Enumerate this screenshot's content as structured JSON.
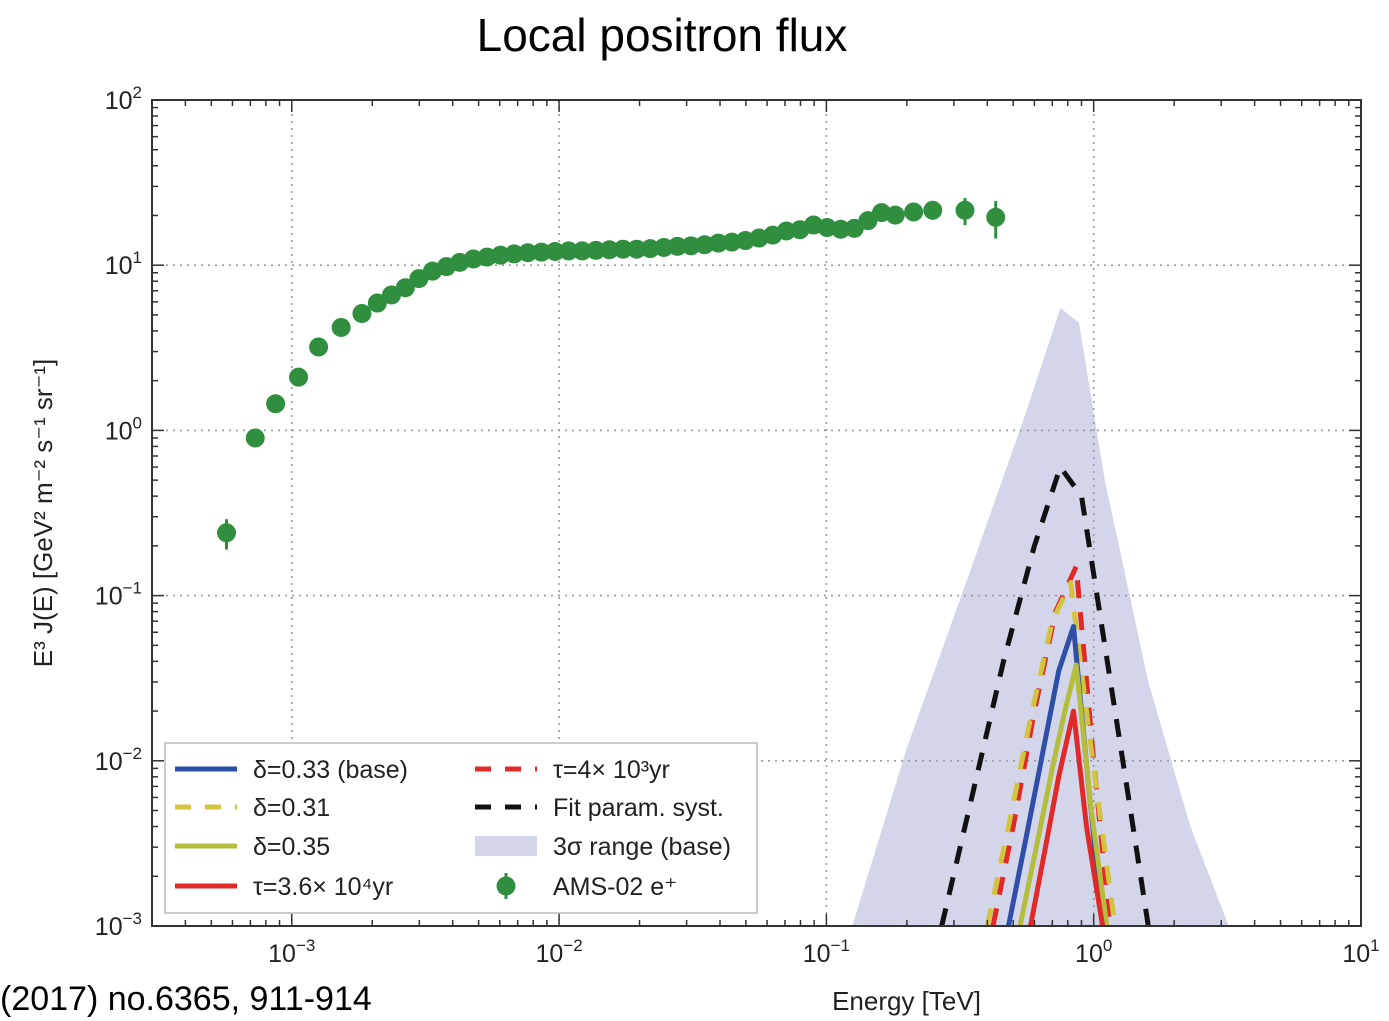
{
  "page": {
    "title": "Local positron flux",
    "citation": "(2017) no.6365, 911-914"
  },
  "chart_data": {
    "type": "line",
    "title": "Local positron flux",
    "xlabel": "Energy [TeV]",
    "ylabel": "E³ J(E) [GeV² m⁻² s⁻¹ sr⁻¹]",
    "x_scale": "log",
    "y_scale": "log",
    "xlim": [
      0.0003,
      10
    ],
    "ylim": [
      0.001,
      100
    ],
    "grid": true,
    "legend_position": "lower-left",
    "x_ticks": [
      {
        "value": 0.001,
        "base": "10",
        "exp": "−3"
      },
      {
        "value": 0.01,
        "base": "10",
        "exp": "−2"
      },
      {
        "value": 0.1,
        "base": "10",
        "exp": "−1"
      },
      {
        "value": 1,
        "base": "10",
        "exp": "0"
      },
      {
        "value": 10,
        "base": "10",
        "exp": "1"
      }
    ],
    "y_ticks": [
      {
        "value": 0.001,
        "base": "10",
        "exp": "−3"
      },
      {
        "value": 0.01,
        "base": "10",
        "exp": "−2"
      },
      {
        "value": 0.1,
        "base": "10",
        "exp": "−1"
      },
      {
        "value": 1,
        "base": "10",
        "exp": "0"
      },
      {
        "value": 10,
        "base": "10",
        "exp": "1"
      },
      {
        "value": 100,
        "base": "10",
        "exp": "2"
      }
    ],
    "band": {
      "name": "3σ range (base)",
      "color": "#d3d5eb",
      "x": [
        0.125,
        0.2,
        0.35,
        0.55,
        0.75,
        0.88,
        1.1,
        1.6,
        2.3,
        3.2
      ],
      "y": [
        0.001,
        0.012,
        0.15,
        1.2,
        5.5,
        4.5,
        0.5,
        0.03,
        0.004,
        0.001
      ]
    },
    "series": [
      {
        "name": "δ=0.33 (base)",
        "color": "#2d4fa8",
        "style": "solid",
        "x": [
          0.48,
          0.56,
          0.65,
          0.74,
          0.84,
          0.95,
          1.08
        ],
        "y": [
          0.001,
          0.0035,
          0.012,
          0.035,
          0.065,
          0.008,
          0.001
        ]
      },
      {
        "name": "δ=0.31",
        "color": "#d2c43e",
        "style": "dashed",
        "x": [
          0.4,
          0.48,
          0.58,
          0.7,
          0.82,
          0.96,
          1.2
        ],
        "y": [
          0.001,
          0.004,
          0.018,
          0.07,
          0.12,
          0.015,
          0.001
        ]
      },
      {
        "name": "δ=0.35",
        "color": "#b5bd3c",
        "style": "solid",
        "x": [
          0.53,
          0.61,
          0.7,
          0.78,
          0.86,
          0.98,
          1.12
        ],
        "y": [
          0.001,
          0.003,
          0.009,
          0.02,
          0.038,
          0.005,
          0.001
        ]
      },
      {
        "name": "τ=3.6× 10⁴yr",
        "color": "#e02a2a",
        "style": "solid",
        "x": [
          0.58,
          0.66,
          0.74,
          0.84,
          0.94,
          1.08
        ],
        "y": [
          0.001,
          0.003,
          0.008,
          0.02,
          0.004,
          0.001
        ]
      },
      {
        "name": "τ=4× 10³yr",
        "color": "#e02a2a",
        "style": "dashed",
        "x": [
          0.42,
          0.5,
          0.6,
          0.72,
          0.86,
          1.0,
          1.15
        ],
        "y": [
          0.001,
          0.004,
          0.02,
          0.08,
          0.15,
          0.01,
          0.001
        ]
      },
      {
        "name": "Fit param. syst.",
        "color": "#111111",
        "style": "dashed",
        "x": [
          0.27,
          0.35,
          0.46,
          0.6,
          0.75,
          0.9,
          1.1,
          1.35,
          1.6
        ],
        "y": [
          0.001,
          0.006,
          0.04,
          0.2,
          0.6,
          0.4,
          0.05,
          0.006,
          0.001
        ]
      }
    ],
    "points": {
      "name": "AMS-02 e⁺",
      "color": "#2f8f3f",
      "x": [
        0.00057,
        0.00073,
        0.00087,
        0.00106,
        0.00126,
        0.00153,
        0.00183,
        0.00209,
        0.00236,
        0.00266,
        0.00299,
        0.00336,
        0.00379,
        0.00425,
        0.00478,
        0.00538,
        0.00604,
        0.00679,
        0.00764,
        0.00859,
        0.00966,
        0.01086,
        0.01221,
        0.01373,
        0.01543,
        0.01735,
        0.01951,
        0.02193,
        0.02466,
        0.02772,
        0.03117,
        0.03504,
        0.0394,
        0.0443,
        0.0498,
        0.056,
        0.063,
        0.0708,
        0.0796,
        0.0895,
        0.1006,
        0.1131,
        0.1272,
        0.143,
        0.1608,
        0.181,
        0.212,
        0.25,
        0.33,
        0.43
      ],
      "y": [
        0.24,
        0.9,
        1.45,
        2.1,
        3.2,
        4.2,
        5.1,
        5.9,
        6.6,
        7.3,
        8.3,
        9.2,
        9.8,
        10.4,
        10.9,
        11.2,
        11.5,
        11.7,
        11.9,
        12.0,
        12.1,
        12.2,
        12.2,
        12.3,
        12.4,
        12.5,
        12.5,
        12.6,
        12.8,
        13.0,
        13.1,
        13.3,
        13.6,
        13.8,
        14.1,
        14.6,
        15.2,
        16.1,
        16.4,
        17.5,
        16.9,
        16.5,
        16.7,
        18.6,
        20.8,
        20.1,
        21.0,
        21.5,
        21.5,
        19.5
      ],
      "err_y": [
        0.05,
        0.06,
        0.08,
        0.1,
        0.15,
        0.2,
        0.22,
        0.25,
        0.28,
        0.3,
        0.3,
        0.32,
        0.33,
        0.34,
        0.35,
        0.36,
        0.37,
        0.38,
        0.38,
        0.39,
        0.4,
        0.4,
        0.41,
        0.42,
        0.43,
        0.44,
        0.45,
        0.46,
        0.48,
        0.5,
        0.52,
        0.55,
        0.58,
        0.62,
        0.66,
        0.7,
        0.75,
        0.8,
        0.9,
        1.0,
        1.1,
        1.2,
        1.3,
        1.5,
        1.7,
        2.0,
        2.3,
        2.7,
        4.0,
        5.0
      ]
    },
    "legend": {
      "col1": [
        {
          "label": "δ=0.33 (base)",
          "kind": "solid",
          "color": "#2d4fa8"
        },
        {
          "label": "δ=0.31",
          "kind": "dashed",
          "color": "#d2c43e"
        },
        {
          "label": "δ=0.35",
          "kind": "solid",
          "color": "#b5bd3c"
        },
        {
          "label": "τ=3.6× 10⁴yr",
          "kind": "solid",
          "color": "#e02a2a"
        }
      ],
      "col2": [
        {
          "label": "τ=4× 10³yr",
          "kind": "dashed",
          "color": "#e02a2a"
        },
        {
          "label": "Fit param. syst.",
          "kind": "dashed",
          "color": "#111111"
        },
        {
          "label": "3σ range (base)",
          "kind": "band",
          "color": "#d3d5eb"
        },
        {
          "label": "AMS-02 e⁺",
          "kind": "marker",
          "color": "#2f8f3f"
        }
      ]
    }
  }
}
